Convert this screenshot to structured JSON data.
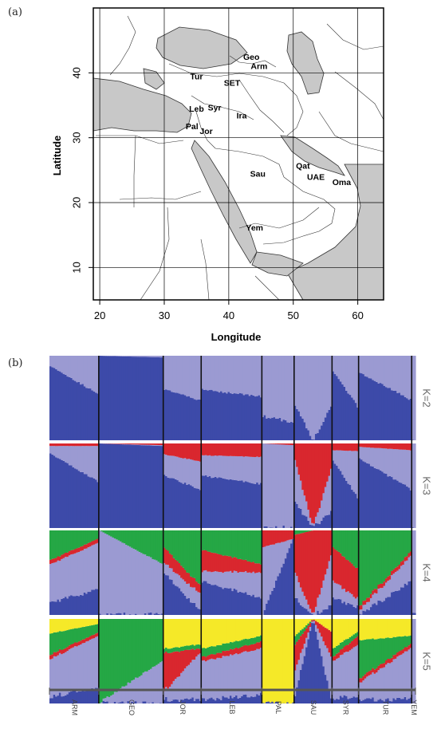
{
  "panels": {
    "a_label": "(a)",
    "b_label": "(b)"
  },
  "chart_data": [
    {
      "type": "map",
      "xlabel": "Longitude",
      "ylabel": "Latitude",
      "xlim": [
        19,
        64
      ],
      "ylim": [
        5,
        50
      ],
      "xticks": [
        20,
        30,
        40,
        50,
        60
      ],
      "yticks": [
        10,
        20,
        30,
        40
      ],
      "grid": true,
      "locations": [
        {
          "label": "Geo",
          "lon": 43.5,
          "lat": 42.0
        },
        {
          "label": "Arm",
          "lon": 44.7,
          "lat": 40.6
        },
        {
          "label": "Tur",
          "lon": 35.0,
          "lat": 39.0
        },
        {
          "label": "SET",
          "lon": 40.5,
          "lat": 38.0
        },
        {
          "label": "Leb",
          "lon": 35.0,
          "lat": 34.0
        },
        {
          "label": "Syr",
          "lon": 37.8,
          "lat": 34.2
        },
        {
          "label": "Ira",
          "lon": 42.0,
          "lat": 33.0
        },
        {
          "label": "Pal",
          "lon": 34.3,
          "lat": 31.3
        },
        {
          "label": "Jor",
          "lon": 36.5,
          "lat": 30.6
        },
        {
          "label": "Sau",
          "lon": 44.5,
          "lat": 24.0
        },
        {
          "label": "Qat",
          "lon": 51.5,
          "lat": 25.2
        },
        {
          "label": "UAE",
          "lon": 53.5,
          "lat": 23.5
        },
        {
          "label": "Oma",
          "lon": 57.5,
          "lat": 22.7
        },
        {
          "label": "Yem",
          "lon": 44.0,
          "lat": 15.7
        }
      ]
    },
    {
      "type": "stacked-bar",
      "colors": [
        "#3d4aa9",
        "#9b9ad2",
        "#d9272e",
        "#25a745",
        "#f5e928"
      ],
      "rows": [
        "K=2",
        "K=3",
        "K=4",
        "K=5"
      ],
      "populations": [
        {
          "label": "ARM",
          "n": 26
        },
        {
          "label": "GEO",
          "n": 34
        },
        {
          "label": "JOR",
          "n": 20
        },
        {
          "label": "LEB",
          "n": 32
        },
        {
          "label": "PAL",
          "n": 17
        },
        {
          "label": "SAU",
          "n": 20
        },
        {
          "label": "SYR",
          "n": 14
        },
        {
          "label": "TUR",
          "n": 28
        },
        {
          "label": "YEM",
          "n": 2
        }
      ],
      "profiles": {
        "K=2": {
          "ARM": [
            [
              0.88,
              0.12
            ],
            [
              0.55,
              0.45
            ]
          ],
          "GEO": [
            [
              1.0,
              0.0
            ],
            [
              0.98,
              0.02
            ]
          ],
          "JOR": [
            [
              0.6,
              0.4
            ],
            [
              0.48,
              0.52
            ]
          ],
          "LEB": [
            [
              0.6,
              0.4
            ],
            [
              0.52,
              0.48
            ]
          ],
          "PAL": [
            [
              0.28,
              0.72
            ],
            [
              0.22,
              0.78
            ]
          ],
          "SAU": [
            [
              0.42,
              0.58
            ],
            [
              0.0,
              1.0
            ],
            [
              0.4,
              0.6
            ]
          ],
          "SYR": [
            [
              0.82,
              0.18
            ],
            [
              0.4,
              0.6
            ]
          ],
          "TUR": [
            [
              0.8,
              0.2
            ],
            [
              0.48,
              0.52
            ]
          ],
          "YEM": [
            [
              0.0,
              1.0
            ],
            [
              0.0,
              1.0
            ]
          ]
        },
        "K=3": {
          "ARM": [
            [
              0.88,
              0.09,
              0.03
            ],
            [
              0.55,
              0.42,
              0.03
            ]
          ],
          "GEO": [
            [
              1.0,
              0.0,
              0.0
            ],
            [
              0.97,
              0.01,
              0.02
            ]
          ],
          "JOR": [
            [
              0.62,
              0.25,
              0.13
            ],
            [
              0.46,
              0.33,
              0.21
            ]
          ],
          "LEB": [
            [
              0.62,
              0.24,
              0.14
            ],
            [
              0.52,
              0.32,
              0.16
            ]
          ],
          "PAL": [
            [
              0.0,
              1.0,
              0.0
            ],
            [
              0.0,
              0.98,
              0.02
            ]
          ],
          "SAU": [
            [
              0.3,
              0.5,
              0.2
            ],
            [
              0.0,
              0.0,
              1.0
            ],
            [
              0.2,
              0.5,
              0.3
            ]
          ],
          "SYR": [
            [
              0.8,
              0.12,
              0.08
            ],
            [
              0.36,
              0.55,
              0.09
            ]
          ],
          "TUR": [
            [
              0.82,
              0.14,
              0.04
            ],
            [
              0.46,
              0.46,
              0.08
            ]
          ],
          "YEM": [
            [
              0.0,
              1.0,
              0.0
            ],
            [
              0.0,
              1.0,
              0.0
            ]
          ]
        },
        "K=4": {
          "ARM": [
            [
              0.15,
              0.45,
              0.05,
              0.35
            ],
            [
              0.3,
              0.55,
              0.05,
              0.1
            ]
          ],
          "GEO": [
            [
              0.0,
              1.0,
              0.0,
              0.0
            ],
            [
              0.0,
              0.6,
              0.0,
              0.4
            ]
          ],
          "JOR": [
            [
              0.5,
              0.12,
              0.18,
              0.2
            ],
            [
              0.05,
              0.2,
              0.1,
              0.65
            ]
          ],
          "LEB": [
            [
              0.4,
              0.12,
              0.25,
              0.23
            ],
            [
              0.2,
              0.3,
              0.1,
              0.4
            ]
          ],
          "PAL": [
            [
              0.0,
              0.8,
              0.2,
              0.0
            ],
            [
              0.9,
              0.0,
              0.1,
              0.0
            ]
          ],
          "SAU": [
            [
              0.2,
              0.3,
              0.45,
              0.05
            ],
            [
              0.0,
              0.0,
              1.0,
              0.0
            ],
            [
              0.1,
              0.6,
              0.3,
              0.0
            ]
          ],
          "SYR": [
            [
              0.2,
              0.2,
              0.4,
              0.2
            ],
            [
              0.1,
              0.1,
              0.35,
              0.45
            ]
          ],
          "TUR": [
            [
              0.0,
              0.05,
              0.05,
              0.9
            ],
            [
              0.4,
              0.3,
              0.05,
              0.25
            ]
          ],
          "YEM": [
            [
              0.0,
              1.0,
              0.0,
              0.0
            ],
            [
              0.0,
              1.0,
              0.0,
              0.0
            ]
          ]
        },
        "K=5": {
          "ARM": [
            [
              0.08,
              0.45,
              0.05,
              0.25,
              0.17
            ],
            [
              0.2,
              0.6,
              0.04,
              0.1,
              0.06
            ]
          ],
          "GEO": [
            [
              0.0,
              0.0,
              0.0,
              1.0,
              0.0
            ],
            [
              0.0,
              0.5,
              0.0,
              0.5,
              0.0
            ]
          ],
          "JOR": [
            [
              0.05,
              0.1,
              0.45,
              0.05,
              0.35
            ],
            [
              0.05,
              0.55,
              0.05,
              0.05,
              0.3
            ]
          ],
          "LEB": [
            [
              0.05,
              0.45,
              0.05,
              0.1,
              0.35
            ],
            [
              0.1,
              0.55,
              0.08,
              0.07,
              0.2
            ]
          ],
          "PAL": [
            [
              0.0,
              0.0,
              0.0,
              0.0,
              1.0
            ],
            [
              0.0,
              0.0,
              0.0,
              0.0,
              1.0
            ]
          ],
          "SAU": [
            [
              0.1,
              0.3,
              0.3,
              0.1,
              0.2
            ],
            [
              1.0,
              0.0,
              0.0,
              0.0,
              0.0
            ],
            [
              0.05,
              0.5,
              0.3,
              0.0,
              0.15
            ]
          ],
          "SYR": [
            [
              0.05,
              0.45,
              0.05,
              0.1,
              0.35
            ],
            [
              0.1,
              0.6,
              0.1,
              0.05,
              0.15
            ]
          ],
          "TUR": [
            [
              0.05,
              0.2,
              0.05,
              0.45,
              0.25
            ],
            [
              0.05,
              0.6,
              0.05,
              0.1,
              0.2
            ]
          ],
          "YEM": [
            [
              0.0,
              1.0,
              0.0,
              0.0,
              0.0
            ],
            [
              0.0,
              1.0,
              0.0,
              0.0,
              0.0
            ]
          ]
        }
      }
    }
  ]
}
